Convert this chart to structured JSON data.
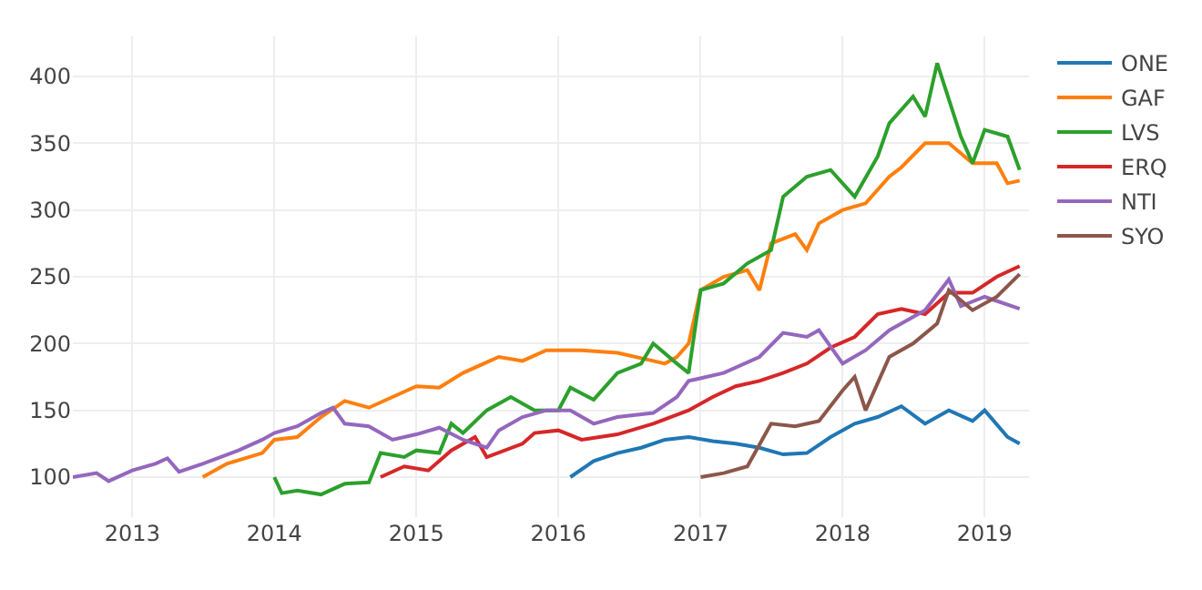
{
  "chart_data": {
    "type": "line",
    "xlim": [
      "2012-08-01",
      "2019-04-25"
    ],
    "ylim": [
      70,
      430
    ],
    "xticks": [
      {
        "value": "2013-01-01",
        "label": "2013"
      },
      {
        "value": "2014-01-01",
        "label": "2014"
      },
      {
        "value": "2015-01-01",
        "label": "2015"
      },
      {
        "value": "2016-01-01",
        "label": "2016"
      },
      {
        "value": "2017-01-01",
        "label": "2017"
      },
      {
        "value": "2018-01-01",
        "label": "2018"
      },
      {
        "value": "2019-01-01",
        "label": "2019"
      }
    ],
    "yticks": [
      100,
      150,
      200,
      250,
      300,
      350,
      400
    ],
    "grid": true,
    "legend": "top right",
    "marker": "none",
    "line_style": "solid",
    "series": [
      {
        "name": "ONE",
        "color": "#1f77b4",
        "x": [
          "2016-02",
          "2016-04",
          "2016-06",
          "2016-08",
          "2016-10",
          "2016-12",
          "2017-02",
          "2017-04",
          "2017-06",
          "2017-08",
          "2017-10",
          "2017-12",
          "2018-02",
          "2018-04",
          "2018-06",
          "2018-08",
          "2018-10",
          "2018-12",
          "2019-01",
          "2019-03",
          "2019-04"
        ],
        "values": [
          100,
          112,
          118,
          122,
          128,
          130,
          127,
          125,
          122,
          117,
          118,
          130,
          140,
          145,
          153,
          140,
          150,
          142,
          150,
          130,
          125
        ]
      },
      {
        "name": "GAF",
        "color": "#ff7f0e",
        "x": [
          "2013-07",
          "2013-09",
          "2013-12",
          "2014-01",
          "2014-03",
          "2014-05",
          "2014-07",
          "2014-09",
          "2014-11",
          "2015-01",
          "2015-03",
          "2015-05",
          "2015-07",
          "2015-08",
          "2015-10",
          "2015-12",
          "2016-03",
          "2016-06",
          "2016-09",
          "2016-10",
          "2016-11",
          "2016-12",
          "2017-01",
          "2017-03",
          "2017-05",
          "2017-06",
          "2017-07",
          "2017-09",
          "2017-10",
          "2017-11",
          "2018-01",
          "2018-03",
          "2018-05",
          "2018-06",
          "2018-08",
          "2018-10",
          "2018-12",
          "2019-02",
          "2019-03",
          "2019-04"
        ],
        "values": [
          100,
          110,
          118,
          128,
          130,
          145,
          157,
          152,
          160,
          168,
          167,
          178,
          186,
          190,
          187,
          195,
          195,
          193,
          187,
          185,
          190,
          200,
          240,
          250,
          255,
          240,
          275,
          282,
          270,
          290,
          300,
          305,
          325,
          332,
          350,
          350,
          335,
          335,
          320,
          322
        ]
      },
      {
        "name": "LVS",
        "color": "#2ca02c",
        "x": [
          "2014-01-01",
          "2014-01-20",
          "2014-03",
          "2014-05",
          "2014-07",
          "2014-09",
          "2014-10",
          "2014-12",
          "2015-01",
          "2015-03",
          "2015-04",
          "2015-05",
          "2015-07",
          "2015-09",
          "2015-11",
          "2016-01",
          "2016-02",
          "2016-04",
          "2016-06",
          "2016-08",
          "2016-09",
          "2016-11",
          "2016-12",
          "2017-01",
          "2017-03",
          "2017-05",
          "2017-07",
          "2017-08",
          "2017-10",
          "2017-12",
          "2018-02",
          "2018-04",
          "2018-05",
          "2018-07",
          "2018-08",
          "2018-09",
          "2018-11",
          "2018-12",
          "2019-01",
          "2019-03",
          "2019-04"
        ],
        "values": [
          100,
          88,
          90,
          87,
          95,
          96,
          118,
          115,
          120,
          118,
          140,
          133,
          150,
          160,
          150,
          150,
          167,
          158,
          178,
          185,
          200,
          185,
          178,
          240,
          245,
          260,
          270,
          310,
          325,
          330,
          310,
          340,
          365,
          385,
          370,
          410,
          355,
          335,
          360,
          355,
          330
        ]
      },
      {
        "name": "ERQ",
        "color": "#d62728",
        "x": [
          "2014-10",
          "2014-12",
          "2015-02",
          "2015-04",
          "2015-06",
          "2015-07",
          "2015-10",
          "2015-11",
          "2016-01",
          "2016-03",
          "2016-06",
          "2016-09",
          "2016-12",
          "2017-02",
          "2017-04",
          "2017-06",
          "2017-08",
          "2017-10",
          "2017-12",
          "2018-02",
          "2018-04",
          "2018-06",
          "2018-08",
          "2018-10",
          "2018-12",
          "2019-02",
          "2019-04"
        ],
        "values": [
          100,
          108,
          105,
          120,
          130,
          115,
          125,
          133,
          135,
          128,
          132,
          140,
          150,
          160,
          168,
          172,
          178,
          185,
          197,
          205,
          222,
          226,
          222,
          238,
          238,
          250,
          258
        ]
      },
      {
        "name": "NTI",
        "color": "#9467bd",
        "x": [
          "2012-08",
          "2012-10",
          "2012-11",
          "2013-01",
          "2013-03",
          "2013-04",
          "2013-05",
          "2013-07",
          "2013-10",
          "2013-12",
          "2014-01",
          "2014-03",
          "2014-05",
          "2014-06",
          "2014-07",
          "2014-09",
          "2014-11",
          "2015-01",
          "2015-03",
          "2015-05",
          "2015-07",
          "2015-08",
          "2015-10",
          "2015-12",
          "2016-02",
          "2016-04",
          "2016-06",
          "2016-09",
          "2016-11",
          "2016-12",
          "2017-03",
          "2017-06",
          "2017-08",
          "2017-10",
          "2017-11",
          "2018-01",
          "2018-03",
          "2018-05",
          "2018-08",
          "2018-10",
          "2018-11",
          "2019-01",
          "2019-04"
        ],
        "values": [
          100,
          103,
          97,
          105,
          110,
          114,
          104,
          110,
          120,
          128,
          133,
          138,
          148,
          152,
          140,
          138,
          128,
          132,
          137,
          128,
          122,
          135,
          145,
          150,
          150,
          140,
          145,
          148,
          160,
          172,
          178,
          190,
          208,
          205,
          210,
          185,
          195,
          210,
          225,
          248,
          228,
          235,
          226
        ]
      },
      {
        "name": "SYO",
        "color": "#8c564b",
        "x": [
          "2017-01",
          "2017-03",
          "2017-05",
          "2017-07",
          "2017-09",
          "2017-11",
          "2018-01",
          "2018-02",
          "2018-03",
          "2018-05",
          "2018-07",
          "2018-09",
          "2018-10",
          "2018-12",
          "2019-02",
          "2019-04"
        ],
        "values": [
          100,
          103,
          108,
          140,
          138,
          142,
          165,
          175,
          150,
          190,
          200,
          215,
          240,
          225,
          235,
          252
        ]
      }
    ]
  }
}
